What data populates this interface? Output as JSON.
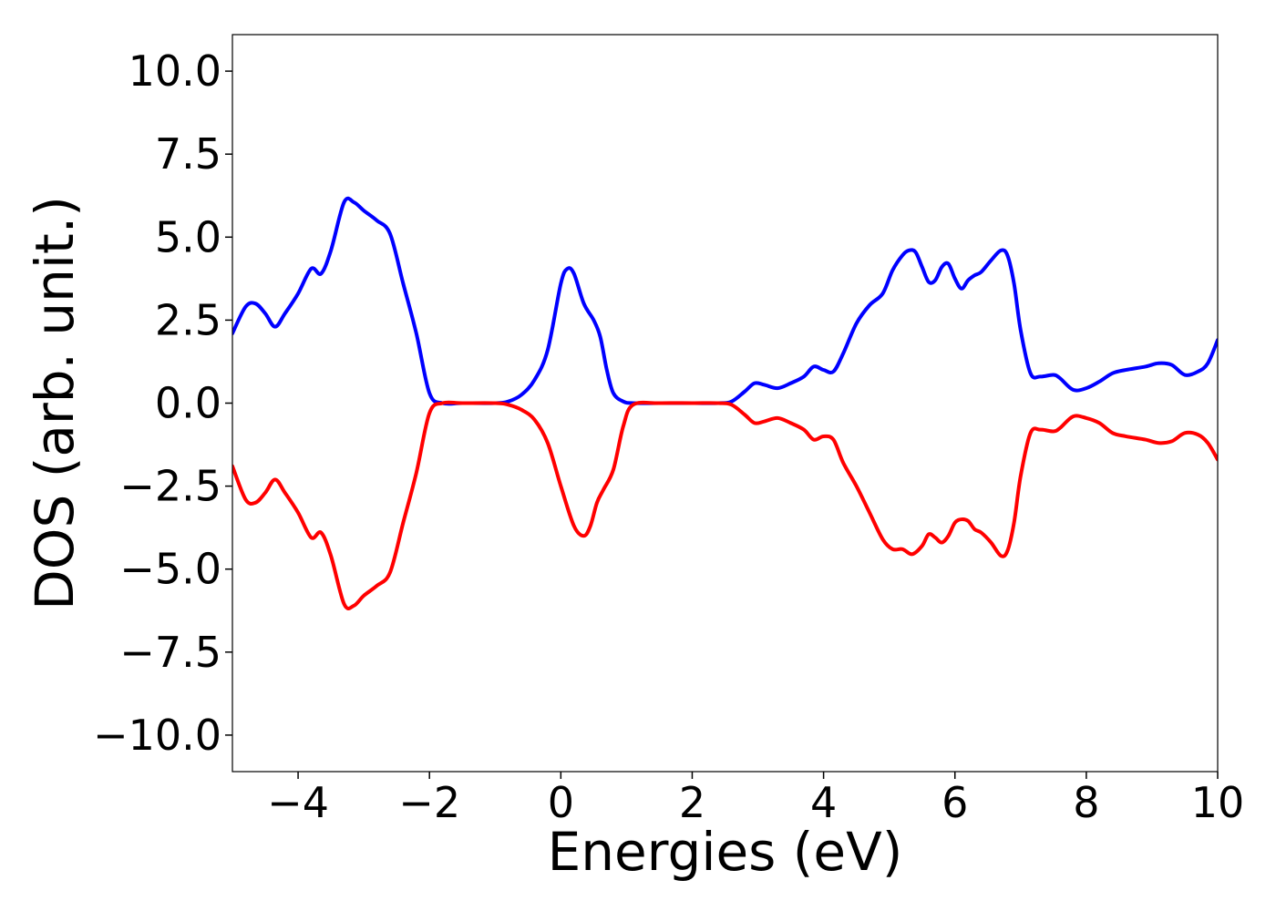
{
  "chart_data": {
    "type": "line",
    "title": "",
    "xlabel": "Energies (eV)",
    "ylabel": "DOS (arb. unit.)",
    "xlim": [
      -5,
      10
    ],
    "ylim": [
      -11.1,
      11.1
    ],
    "xticks": [
      -4,
      -2,
      0,
      2,
      4,
      6,
      8,
      10
    ],
    "xtick_labels": [
      "−4",
      "−2",
      "0",
      "2",
      "4",
      "6",
      "8",
      "10"
    ],
    "yticks": [
      10,
      7.5,
      5,
      2.5,
      0,
      -2.5,
      -5,
      -7.5,
      -10
    ],
    "ytick_labels": [
      "10.0",
      "7.5",
      "5.0",
      "2.5",
      "0.0",
      "−2.5",
      "−5.0",
      "−7.5",
      "−10.0"
    ],
    "grid": false,
    "legend": "none",
    "series": [
      {
        "color": "#0000ff",
        "x": [
          -5.0,
          -4.8,
          -4.65,
          -4.5,
          -4.35,
          -4.2,
          -4.0,
          -3.8,
          -3.65,
          -3.5,
          -3.3,
          -3.15,
          -3.0,
          -2.8,
          -2.6,
          -2.4,
          -2.2,
          -2.0,
          -1.8,
          -1.5,
          -1.0,
          -0.8,
          -0.6,
          -0.4,
          -0.2,
          0.0,
          0.1,
          0.2,
          0.35,
          0.5,
          0.6,
          0.7,
          0.8,
          0.95,
          1.1,
          1.5,
          2.0,
          2.4,
          2.6,
          2.8,
          2.95,
          3.1,
          3.3,
          3.5,
          3.7,
          3.85,
          4.0,
          4.15,
          4.3,
          4.5,
          4.7,
          4.9,
          5.05,
          5.2,
          5.3,
          5.4,
          5.5,
          5.6,
          5.7,
          5.8,
          5.9,
          6.0,
          6.1,
          6.2,
          6.3,
          6.4,
          6.55,
          6.7,
          6.8,
          6.9,
          7.0,
          7.15,
          7.3,
          7.5,
          7.6,
          7.8,
          8.0,
          8.2,
          8.4,
          8.6,
          8.9,
          9.1,
          9.3,
          9.5,
          9.7,
          9.85,
          10.0
        ],
        "y": [
          2.1,
          2.9,
          3.0,
          2.7,
          2.3,
          2.7,
          3.3,
          4.05,
          3.9,
          4.6,
          6.05,
          6.05,
          5.8,
          5.5,
          5.1,
          3.6,
          2.1,
          0.3,
          0.0,
          0.0,
          0.0,
          0.05,
          0.25,
          0.7,
          1.6,
          3.6,
          4.05,
          3.9,
          3.0,
          2.5,
          2.0,
          1.0,
          0.3,
          0.05,
          0.0,
          0.0,
          0.0,
          0.0,
          0.05,
          0.35,
          0.6,
          0.55,
          0.45,
          0.6,
          0.8,
          1.1,
          1.0,
          0.95,
          1.5,
          2.4,
          2.95,
          3.3,
          4.0,
          4.45,
          4.6,
          4.55,
          4.1,
          3.65,
          3.7,
          4.1,
          4.2,
          3.75,
          3.45,
          3.7,
          3.85,
          3.95,
          4.3,
          4.6,
          4.45,
          3.6,
          2.2,
          0.9,
          0.8,
          0.85,
          0.75,
          0.4,
          0.45,
          0.65,
          0.9,
          1.0,
          1.1,
          1.2,
          1.15,
          0.85,
          0.95,
          1.2,
          1.9
        ]
      },
      {
        "color": "#ff0000",
        "x": [
          -5.0,
          -4.8,
          -4.65,
          -4.5,
          -4.35,
          -4.2,
          -4.0,
          -3.8,
          -3.65,
          -3.5,
          -3.3,
          -3.15,
          -3.0,
          -2.8,
          -2.6,
          -2.4,
          -2.2,
          -2.0,
          -1.8,
          -1.5,
          -1.0,
          -0.8,
          -0.6,
          -0.4,
          -0.2,
          0.0,
          0.2,
          0.35,
          0.45,
          0.55,
          0.65,
          0.8,
          0.95,
          1.1,
          1.5,
          2.0,
          2.4,
          2.6,
          2.8,
          2.95,
          3.1,
          3.3,
          3.5,
          3.7,
          3.85,
          4.0,
          4.15,
          4.3,
          4.5,
          4.7,
          4.9,
          5.05,
          5.2,
          5.35,
          5.5,
          5.6,
          5.7,
          5.8,
          5.9,
          6.0,
          6.1,
          6.2,
          6.3,
          6.4,
          6.55,
          6.7,
          6.8,
          6.9,
          7.0,
          7.15,
          7.3,
          7.5,
          7.6,
          7.8,
          8.0,
          8.2,
          8.4,
          8.6,
          8.9,
          9.1,
          9.3,
          9.5,
          9.7,
          9.85,
          10.0
        ],
        "y": [
          -1.9,
          -2.9,
          -3.0,
          -2.7,
          -2.3,
          -2.7,
          -3.3,
          -4.05,
          -3.9,
          -4.6,
          -6.05,
          -6.1,
          -5.8,
          -5.5,
          -5.1,
          -3.6,
          -2.1,
          -0.3,
          0.0,
          0.0,
          0.0,
          -0.05,
          -0.2,
          -0.5,
          -1.2,
          -2.5,
          -3.7,
          -4.0,
          -3.7,
          -3.0,
          -2.6,
          -2.0,
          -0.7,
          -0.05,
          0.0,
          0.0,
          0.0,
          -0.05,
          -0.35,
          -0.6,
          -0.55,
          -0.45,
          -0.6,
          -0.8,
          -1.1,
          -1.0,
          -1.1,
          -1.8,
          -2.5,
          -3.3,
          -4.1,
          -4.4,
          -4.4,
          -4.55,
          -4.3,
          -3.95,
          -4.05,
          -4.2,
          -4.0,
          -3.6,
          -3.5,
          -3.55,
          -3.8,
          -3.9,
          -4.2,
          -4.6,
          -4.45,
          -3.6,
          -2.2,
          -0.9,
          -0.8,
          -0.85,
          -0.75,
          -0.4,
          -0.45,
          -0.6,
          -0.9,
          -1.0,
          -1.1,
          -1.2,
          -1.15,
          -0.9,
          -0.95,
          -1.2,
          -1.7
        ]
      }
    ]
  }
}
